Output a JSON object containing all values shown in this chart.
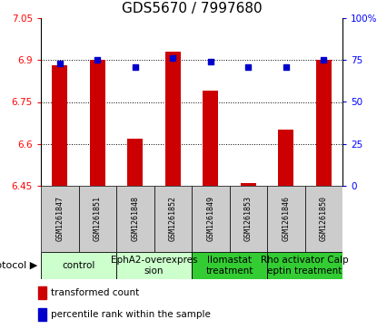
{
  "title": "GDS5670 / 7997680",
  "samples": [
    "GSM1261847",
    "GSM1261851",
    "GSM1261848",
    "GSM1261852",
    "GSM1261849",
    "GSM1261853",
    "GSM1261846",
    "GSM1261850"
  ],
  "bar_values": [
    6.88,
    6.9,
    6.62,
    6.93,
    6.79,
    6.46,
    6.65,
    6.9
  ],
  "dot_values": [
    73,
    75,
    71,
    76,
    74,
    71,
    71,
    75
  ],
  "ylim_left": [
    6.45,
    7.05
  ],
  "ylim_right": [
    0,
    100
  ],
  "yticks_left": [
    6.45,
    6.6,
    6.75,
    6.9,
    7.05
  ],
  "yticks_right": [
    0,
    25,
    50,
    75,
    100
  ],
  "ytick_labels_left": [
    "6.45",
    "6.6",
    "6.75",
    "6.9",
    "7.05"
  ],
  "ytick_labels_right": [
    "0",
    "25",
    "50",
    "75",
    "100%"
  ],
  "bar_color": "#cc0000",
  "dot_color": "#0000cc",
  "groups": [
    {
      "label": "control",
      "indices": [
        0,
        1
      ],
      "color": "#ccffcc"
    },
    {
      "label": "EphA2-overexpres\nsion",
      "indices": [
        2,
        3
      ],
      "color": "#ccffcc"
    },
    {
      "label": "Ilomastat\ntreatment",
      "indices": [
        4,
        5
      ],
      "color": "#33cc33"
    },
    {
      "label": "Rho activator Calp\neptin treatment",
      "indices": [
        6,
        7
      ],
      "color": "#33cc33"
    }
  ],
  "protocol_label": "protocol",
  "legend_bar_label": "transformed count",
  "legend_dot_label": "percentile rank within the sample",
  "title_fontsize": 11,
  "tick_fontsize": 7.5,
  "sample_fontsize": 6.0,
  "group_fontsize": 7.5,
  "legend_fontsize": 7.5,
  "bar_width": 0.4
}
